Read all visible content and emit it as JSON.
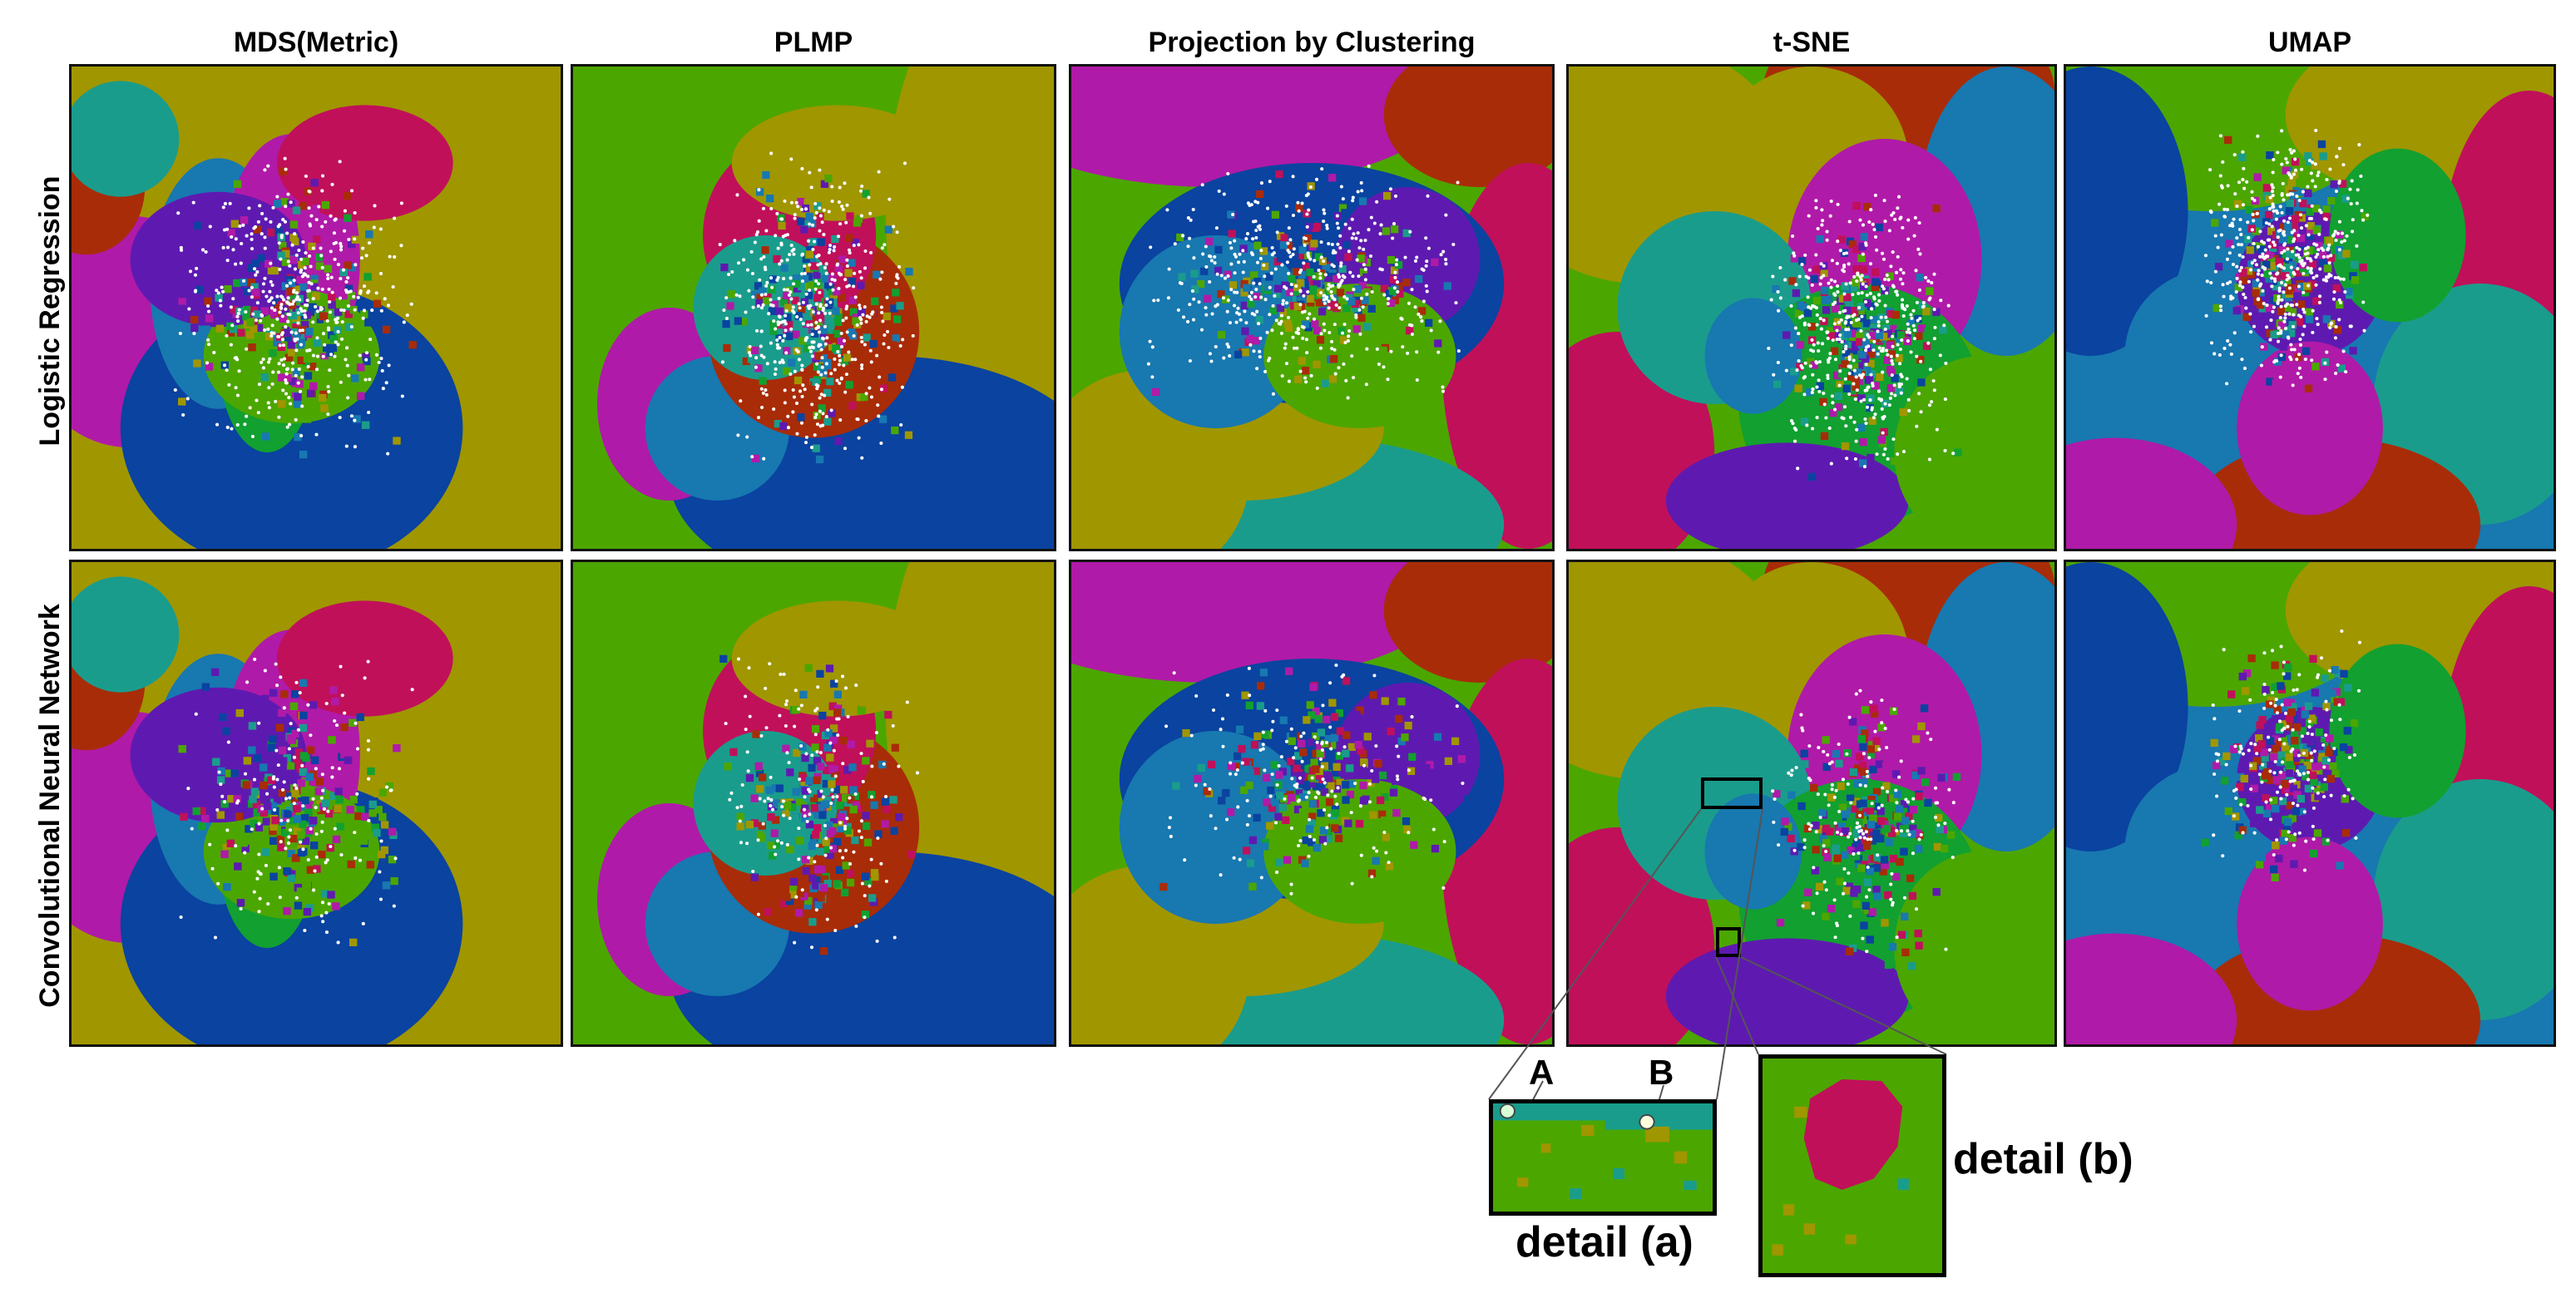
{
  "columns": [
    "MDS(Metric)",
    "PLMP",
    "Projection by Clustering",
    "t-SNE",
    "UMAP"
  ],
  "rows": [
    "Logistic Regression",
    "Convolutional Neural Network"
  ],
  "details": {
    "a": {
      "label": "detail (a)",
      "point_a": "A",
      "point_b": "B"
    },
    "b": {
      "label": "detail (b)"
    }
  },
  "class_colors": [
    "#0a43a0",
    "#a09600",
    "#4ca600",
    "#c0105a",
    "#b01aa8",
    "#1a9c8c",
    "#1878b0",
    "#a82c08",
    "#5e1ab0",
    "#12a030"
  ],
  "point_color": "#ffffff"
}
